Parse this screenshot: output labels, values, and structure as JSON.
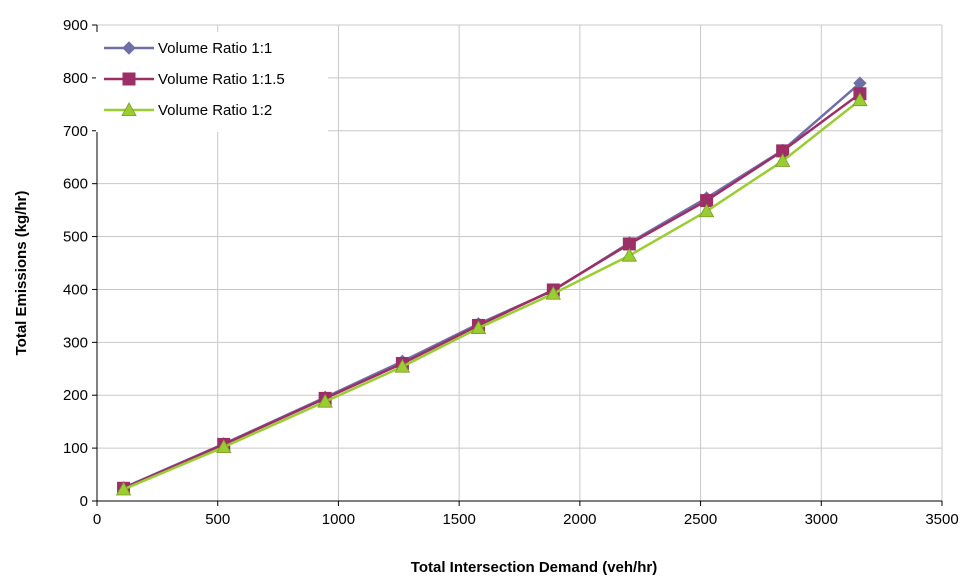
{
  "chart_data": {
    "type": "line",
    "title": "",
    "xlabel": "Total Intersection Demand (veh/hr)",
    "ylabel": "Total Emissions (kg/hr)",
    "xlim": [
      0,
      3500
    ],
    "ylim": [
      0,
      900
    ],
    "xticks": [
      0,
      500,
      1000,
      1500,
      2000,
      2500,
      3000,
      3500
    ],
    "yticks": [
      0,
      100,
      200,
      300,
      400,
      500,
      600,
      700,
      800,
      900
    ],
    "grid": true,
    "legend_position": "top-left",
    "x": [
      110,
      525,
      945,
      1265,
      1580,
      1890,
      2205,
      2525,
      2840,
      3160
    ],
    "series": [
      {
        "name": "Volume Ratio 1:1",
        "marker": "diamond",
        "color": "#6f6fa6",
        "values": [
          25,
          108,
          196,
          264,
          335,
          398,
          488,
          573,
          663,
          790
        ]
      },
      {
        "name": "Volume Ratio 1:1.5",
        "marker": "square",
        "color": "#9c2f66",
        "values": [
          24,
          107,
          194,
          260,
          332,
          399,
          486,
          568,
          662,
          770
        ]
      },
      {
        "name": "Volume Ratio 1:2",
        "marker": "triangle",
        "color": "#9acd32",
        "values": [
          22,
          102,
          188,
          254,
          327,
          392,
          464,
          548,
          643,
          758
        ]
      }
    ]
  }
}
